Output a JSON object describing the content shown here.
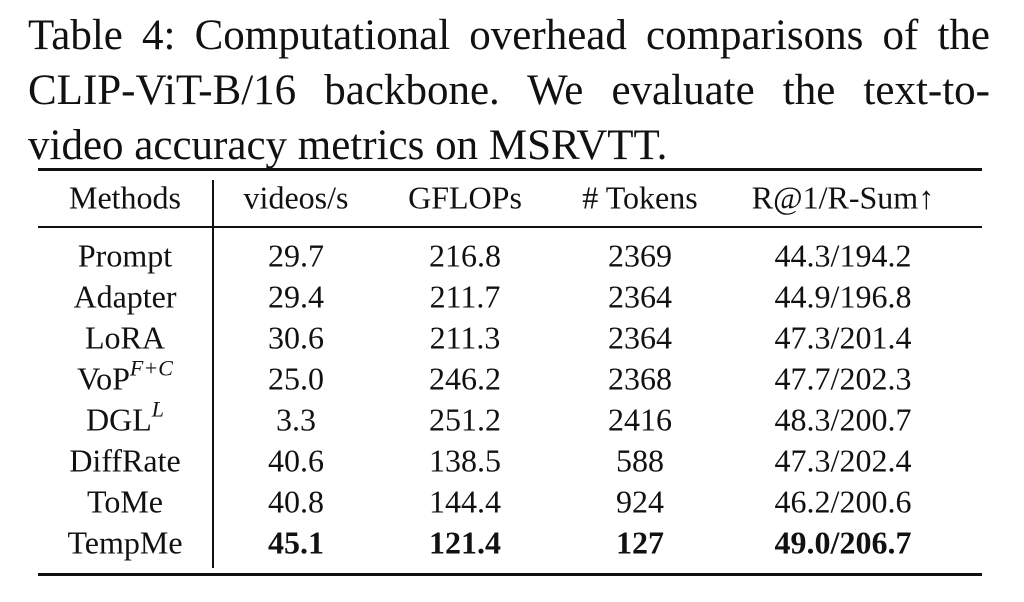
{
  "caption": "Table 4: Computational overhead comparisons of the CLIP-ViT-B/16 backbone. We evaluate the text-to-video accuracy metrics on MSRVTT.",
  "table": {
    "header": [
      "Methods",
      "videos/s",
      "GFLOPs",
      "# Tokens",
      "R@1/R-Sum↑"
    ],
    "rows": [
      {
        "method": "Prompt",
        "cells": [
          "29.7",
          "216.8",
          "2369",
          "44.3/194.2"
        ]
      },
      {
        "method": "Adapter",
        "cells": [
          "29.4",
          "211.7",
          "2364",
          "44.9/196.8"
        ]
      },
      {
        "method": "LoRA",
        "cells": [
          "30.6",
          "211.3",
          "2364",
          "47.3/201.4"
        ]
      },
      {
        "method": "VoP",
        "sup": "F+C",
        "cells": [
          "25.0",
          "246.2",
          "2368",
          "47.7/202.3"
        ]
      },
      {
        "method": "DGL",
        "sup": "L",
        "cells": [
          "3.3",
          "251.2",
          "2416",
          "48.3/200.7"
        ]
      },
      {
        "method": "DiffRate",
        "cells": [
          "40.6",
          "138.5",
          "588",
          "47.3/202.4"
        ]
      },
      {
        "method": "ToMe",
        "cells": [
          "40.8",
          "144.4",
          "924",
          "46.2/200.6"
        ]
      },
      {
        "method": "TempMe",
        "cells": [
          "45.1",
          "121.4",
          "127",
          "49.0/206.7"
        ]
      }
    ]
  }
}
